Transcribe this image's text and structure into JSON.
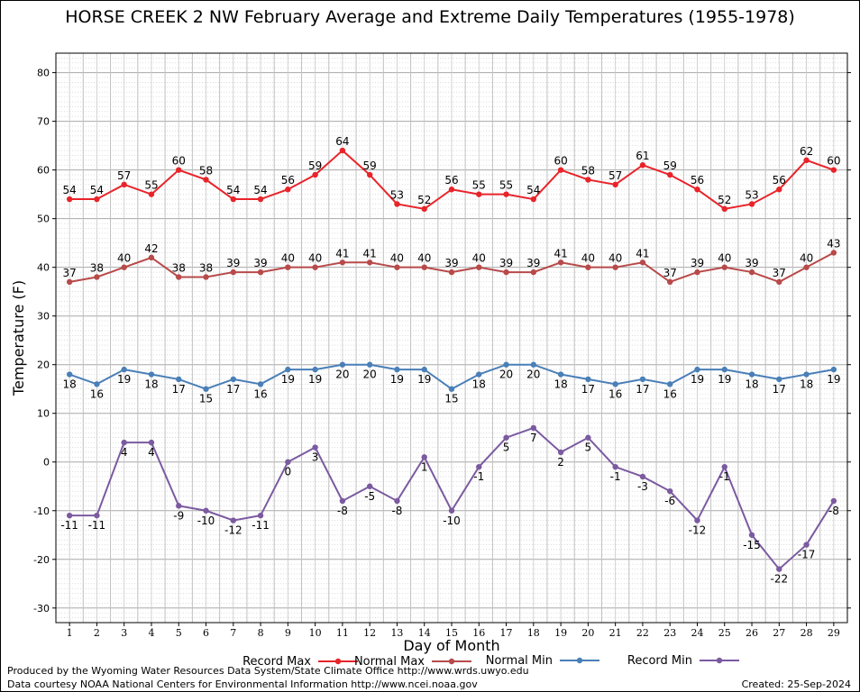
{
  "chart_data": {
    "type": "line",
    "title": "HORSE CREEK 2 NW February Average and Extreme Daily Temperatures (1955-1978)",
    "xlabel": "Day of Month",
    "ylabel": "Temperature (F)",
    "ylim": [
      -33,
      84
    ],
    "yticks": [
      -30,
      -20,
      -10,
      0,
      10,
      20,
      30,
      40,
      50,
      60,
      70,
      80
    ],
    "grid": true,
    "legend_position": "bottom",
    "x": [
      1,
      2,
      3,
      4,
      5,
      6,
      7,
      8,
      9,
      10,
      11,
      12,
      13,
      14,
      15,
      16,
      17,
      18,
      19,
      20,
      21,
      22,
      23,
      24,
      25,
      26,
      27,
      28,
      29
    ],
    "series": [
      {
        "name": "Record Max",
        "color": "#e8242a",
        "values": [
          54,
          54,
          57,
          55,
          60,
          58,
          54,
          54,
          56,
          59,
          64,
          59,
          53,
          52,
          56,
          55,
          55,
          54,
          60,
          58,
          57,
          61,
          59,
          56,
          52,
          53,
          56,
          62,
          60
        ]
      },
      {
        "name": "Normal Max",
        "color": "#b84a4a",
        "values": [
          37,
          38,
          40,
          42,
          38,
          38,
          39,
          39,
          40,
          40,
          41,
          41,
          40,
          40,
          39,
          40,
          39,
          39,
          41,
          40,
          40,
          41,
          37,
          39,
          40,
          39,
          37,
          40,
          43
        ]
      },
      {
        "name": "Normal Min",
        "color": "#4a7fb8",
        "values": [
          18,
          16,
          19,
          18,
          17,
          15,
          17,
          16,
          19,
          19,
          20,
          20,
          19,
          19,
          15,
          18,
          20,
          20,
          18,
          17,
          16,
          17,
          16,
          19,
          19,
          18,
          17,
          18,
          19
        ]
      },
      {
        "name": "Record Min",
        "color": "#7b5aa0",
        "values": [
          -11,
          -11,
          4,
          4,
          -9,
          -10,
          -12,
          -11,
          0,
          3,
          -8,
          -5,
          -8,
          1,
          -10,
          -1,
          5,
          7,
          2,
          5,
          -1,
          -3,
          -6,
          -12,
          -1,
          -15,
          -22,
          -17,
          -8
        ]
      }
    ]
  },
  "footer": {
    "produced_by": "Produced by the Wyoming Water Resources Data System/State Climate Office http://www.wrds.uwyo.edu",
    "courtesy": "Data courtesy NOAA National Centers for Environmental Information http://www.ncei.noaa.gov",
    "created": "Created:  25-Sep-2024"
  }
}
